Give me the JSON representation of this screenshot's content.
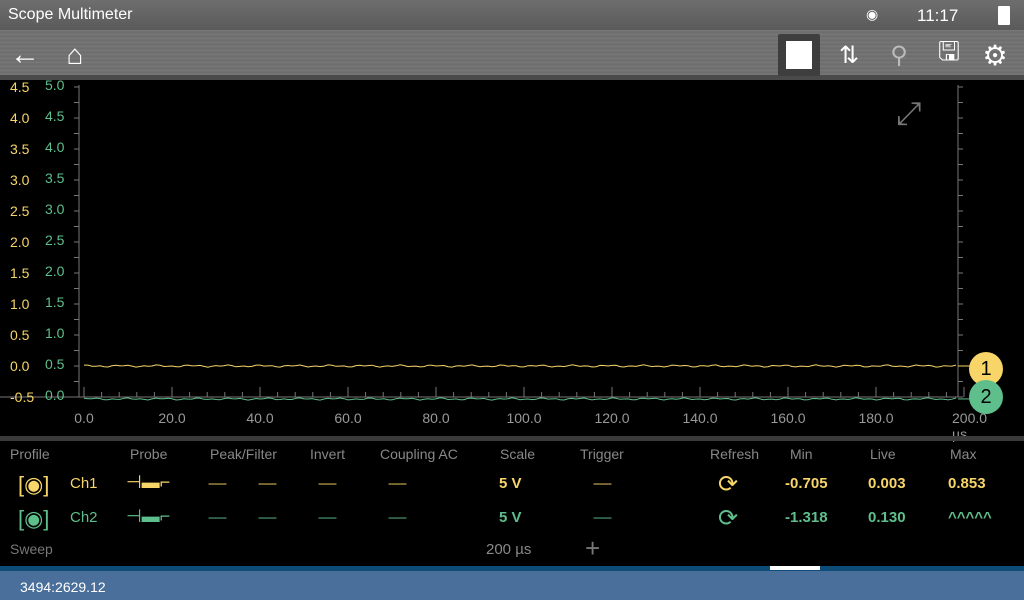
{
  "status": {
    "title": "Scope Multimeter",
    "time": "11:17",
    "icons": [
      "wifi-icon",
      "battery-icon"
    ]
  },
  "toolbar": {
    "icons": [
      "back-arrow-icon",
      "garage-home-icon",
      "stop-icon",
      "cursor-icon",
      "zoom-icon",
      "save-icon",
      "settings-icon"
    ]
  },
  "chart_data": {
    "type": "line",
    "x_unit": "µs",
    "xlim": [
      0,
      200
    ],
    "x_ticks": [
      "0.0",
      "20.0",
      "40.0",
      "60.0",
      "80.0",
      "100.0",
      "120.0",
      "140.0",
      "160.0",
      "180.0",
      "200.0 µs"
    ],
    "y_ticks_ch1": [
      "4.5",
      "4.0",
      "3.5",
      "3.0",
      "2.5",
      "2.0",
      "1.5",
      "1.0",
      "0.5",
      "0.0",
      "-0.5"
    ],
    "y_ticks_ch2": [
      "5.0",
      "4.5",
      "4.0",
      "3.5",
      "3.0",
      "2.5",
      "2.0",
      "1.5",
      "1.0",
      "0.5",
      "0.0"
    ],
    "series": [
      {
        "name": "1",
        "color": "#f7d568",
        "level": 0.0
      },
      {
        "name": "2",
        "color": "#5fbf8c",
        "level": 0.13
      }
    ],
    "grid": false
  },
  "table": {
    "headers": [
      "Profile",
      "Probe",
      "Peak/Filter",
      "Invert",
      "Coupling AC",
      "Scale",
      "Trigger",
      "Refresh",
      "Min",
      "Live",
      "Max"
    ],
    "rows": [
      {
        "ch": "Ch1",
        "color": "#f7d568",
        "dash": "------",
        "scale": "5 V",
        "min": "-0.705",
        "live": "0.003",
        "max": "0.853"
      },
      {
        "ch": "Ch2",
        "color": "#5fbf8c",
        "dash": "------",
        "scale": "5 V",
        "min": "-1.318",
        "live": "0.130",
        "max": "^^^^^"
      }
    ],
    "sweep_label": "Sweep",
    "sweep_value": "200 µs"
  },
  "footer": {
    "coord": "3494:2629.12"
  }
}
